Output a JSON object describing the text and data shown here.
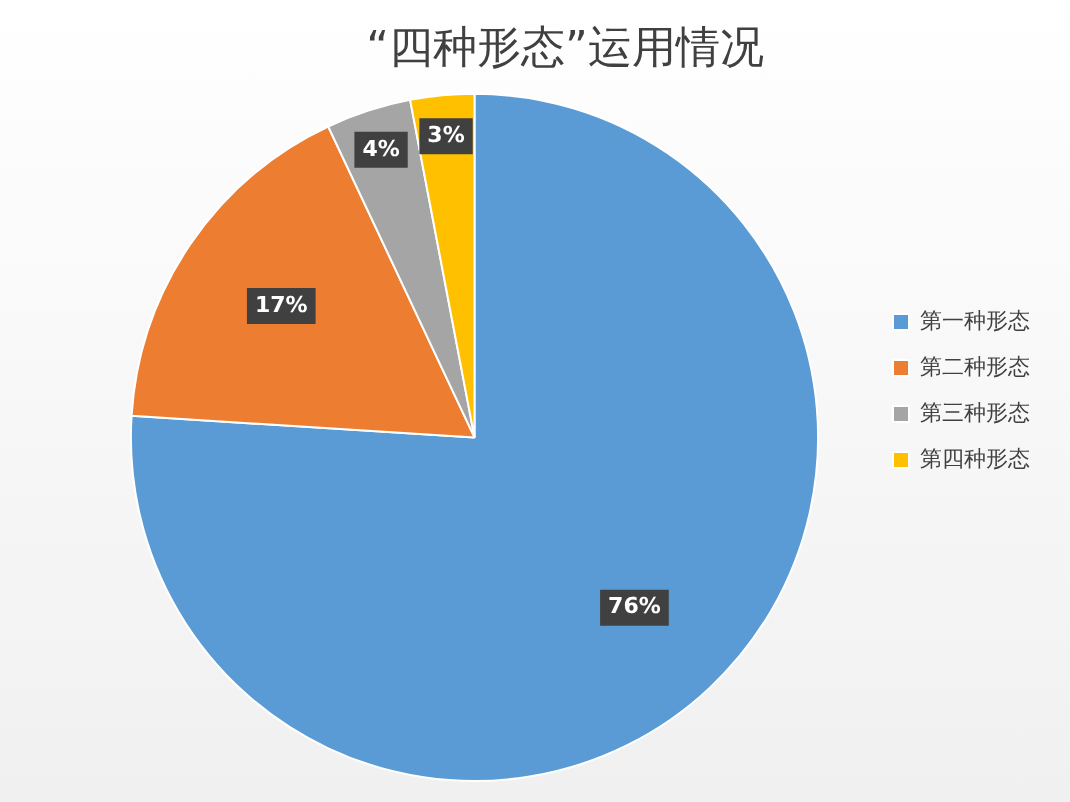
{
  "chart_data": {
    "type": "pie",
    "title": "“四种形态”运用情况",
    "categories": [
      "第一种形态",
      "第二种形态",
      "第三种形态",
      "第四种形态"
    ],
    "values": [
      76,
      17,
      4,
      3
    ],
    "colors": [
      "#5b9bd5",
      "#ed7d31",
      "#a5a5a5",
      "#ffc000"
    ],
    "value_labels": [
      "76%",
      "17%",
      "4%",
      "3%"
    ],
    "legend": "right"
  }
}
